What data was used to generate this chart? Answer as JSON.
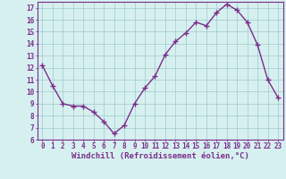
{
  "x": [
    0,
    1,
    2,
    3,
    4,
    5,
    6,
    7,
    8,
    9,
    10,
    11,
    12,
    13,
    14,
    15,
    16,
    17,
    18,
    19,
    20,
    21,
    22,
    23
  ],
  "y": [
    12.2,
    10.5,
    9.0,
    8.8,
    8.8,
    8.3,
    7.5,
    6.5,
    7.2,
    9.0,
    10.3,
    11.3,
    13.1,
    14.2,
    14.9,
    15.8,
    15.5,
    16.6,
    17.3,
    16.8,
    15.8,
    13.9,
    11.0,
    9.5
  ],
  "line_color": "#7b2d8b",
  "bg_color": "#d6f0f0",
  "grid_color": "#a0c8c8",
  "xlabel": "Windchill (Refroidissement éolien,°C)",
  "xlabel_color": "#7b2d8b",
  "tick_color": "#7b2d8b",
  "spine_color": "#7b2d8b",
  "ylim": [
    6,
    17.5
  ],
  "yticks": [
    6,
    7,
    8,
    9,
    10,
    11,
    12,
    13,
    14,
    15,
    16,
    17
  ],
  "xticks": [
    0,
    1,
    2,
    3,
    4,
    5,
    6,
    7,
    8,
    9,
    10,
    11,
    12,
    13,
    14,
    15,
    16,
    17,
    18,
    19,
    20,
    21,
    22,
    23
  ],
  "marker": "+",
  "marker_size": 4,
  "marker_edge_width": 1.0,
  "line_width": 1.0,
  "font_size_ticks": 5.5,
  "font_size_xlabel": 6.5,
  "xlim": [
    -0.5,
    23.5
  ]
}
